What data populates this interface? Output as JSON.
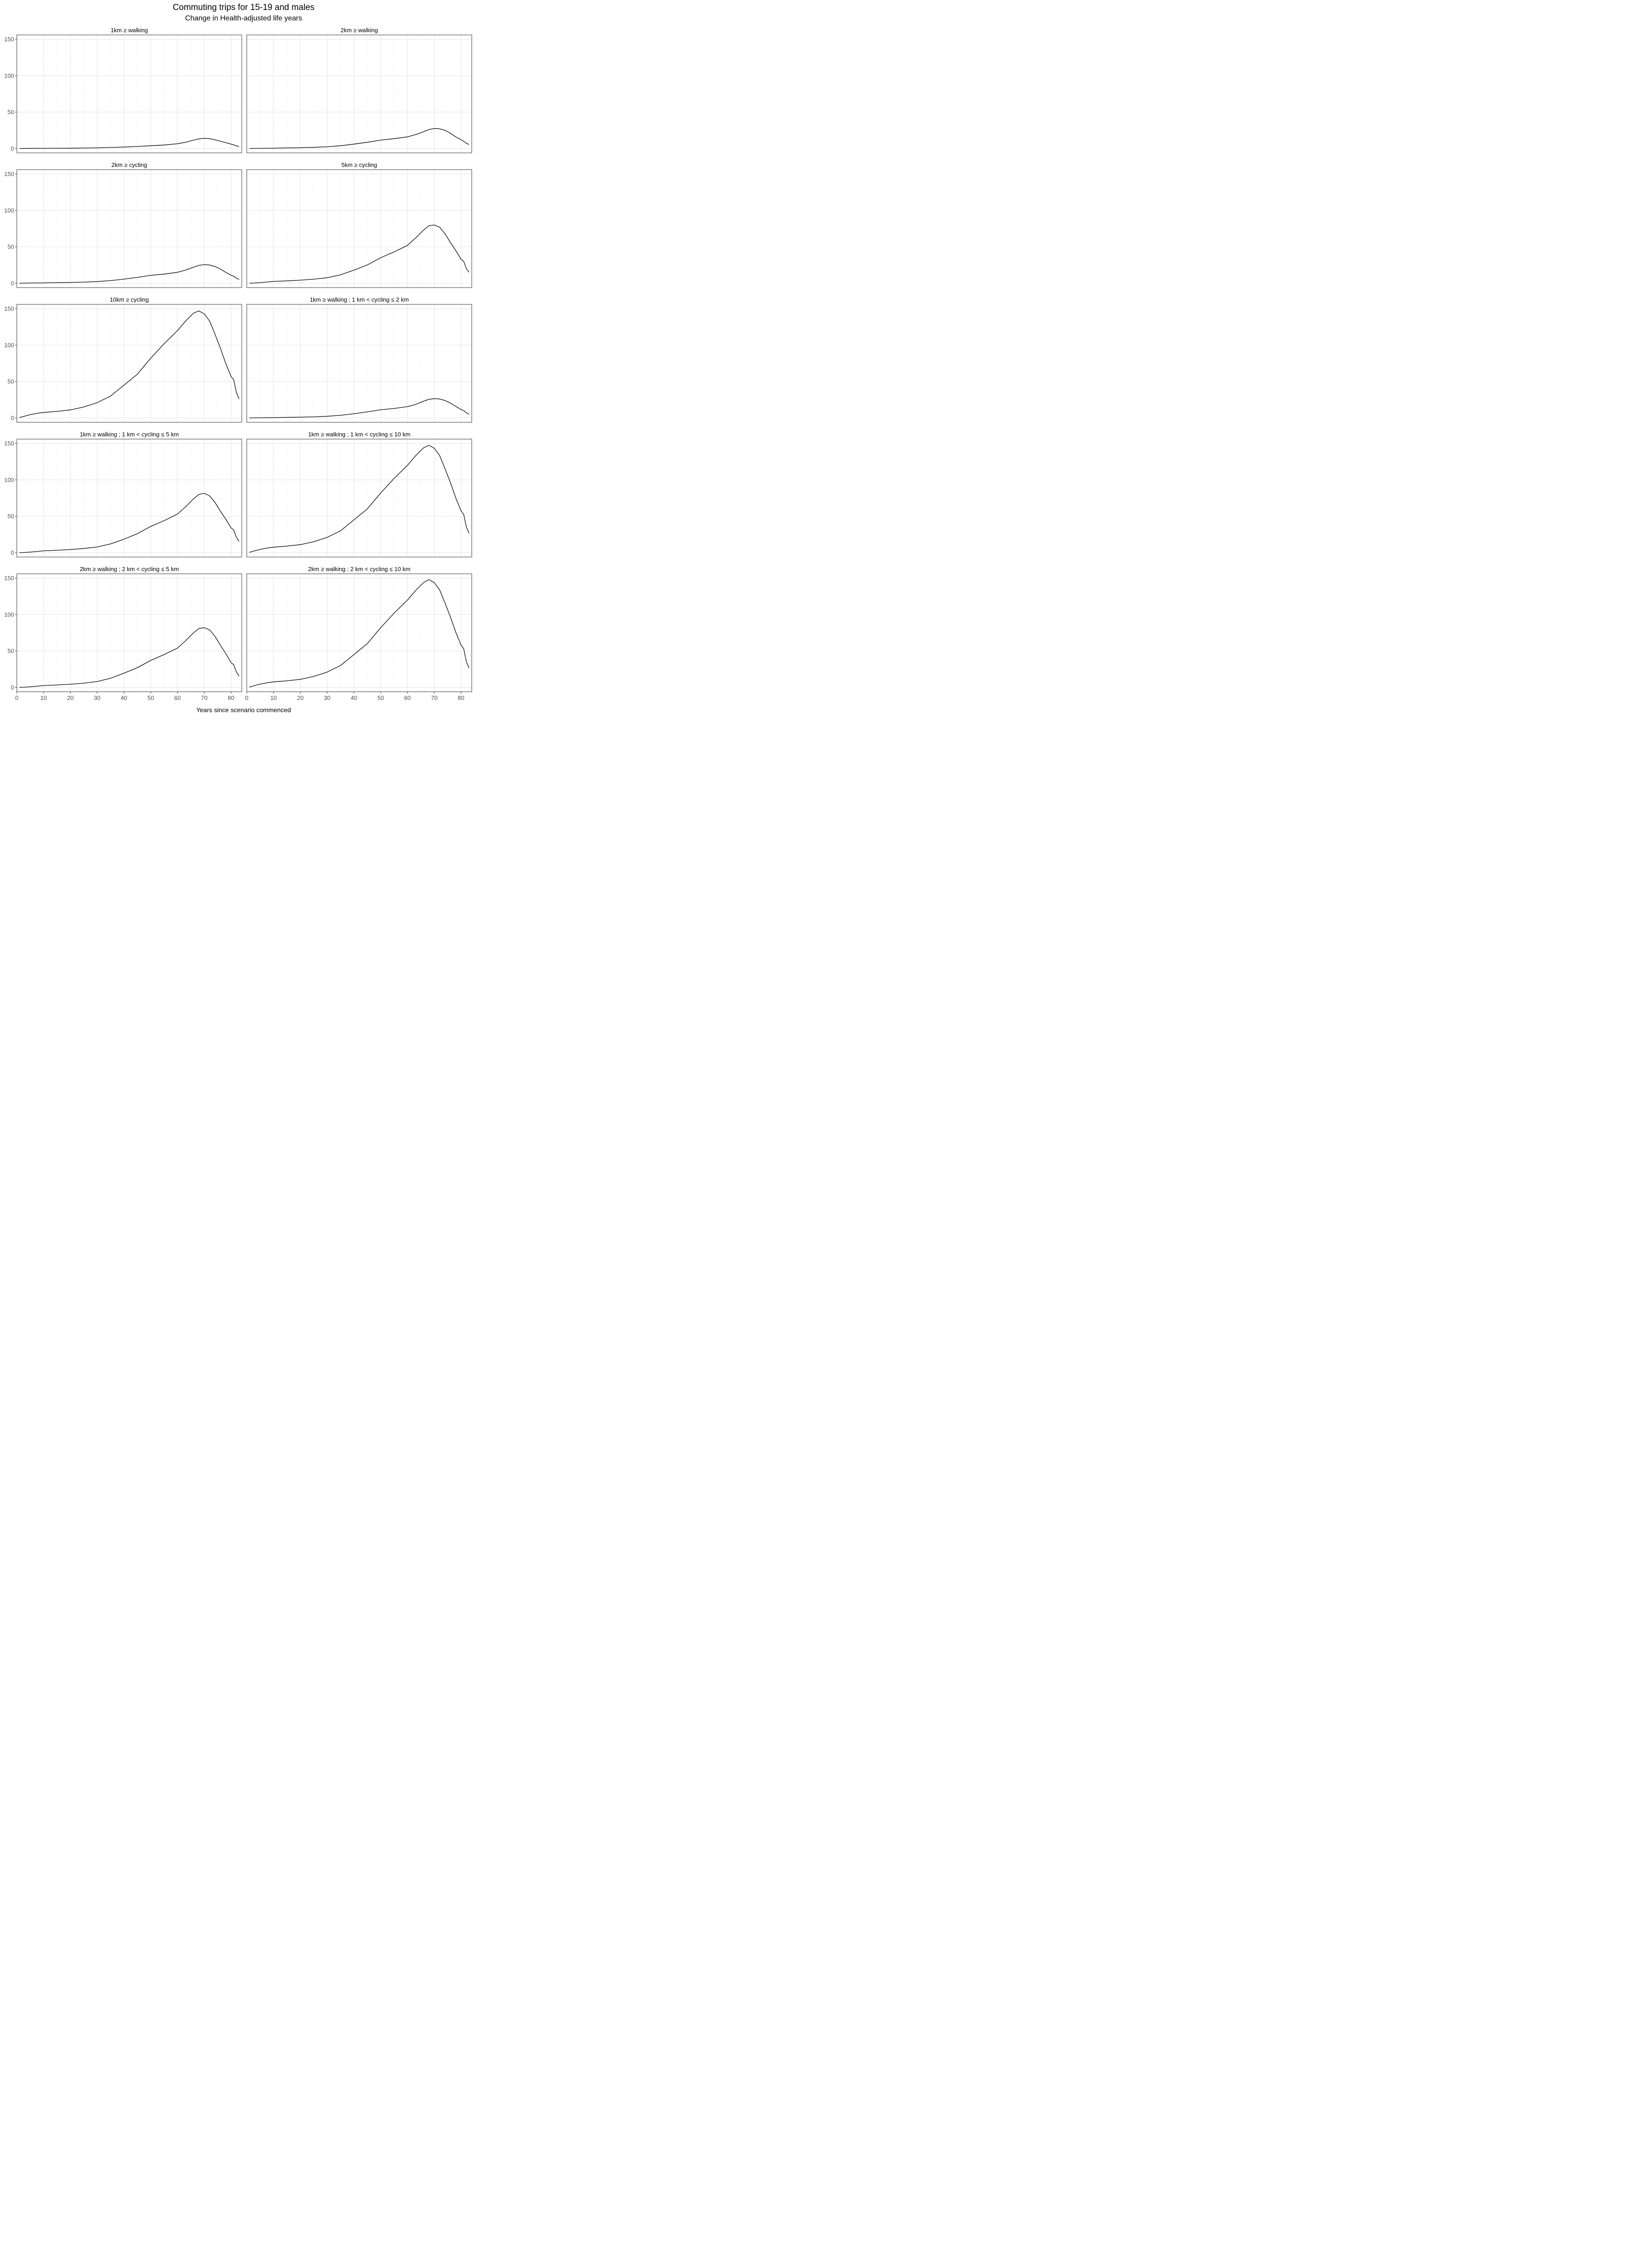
{
  "chart_data": {
    "type": "line",
    "title": "Commuting trips for 15-19 and males",
    "subtitle": "Change in Health-adjusted life years",
    "xlabel": "Years since scenario commenced",
    "ylabel": "",
    "xlim": [
      0,
      84
    ],
    "ylim": [
      -6,
      156
    ],
    "x_ticks": [
      0,
      10,
      20,
      30,
      40,
      50,
      60,
      70,
      80
    ],
    "y_ticks": [
      0,
      50,
      100,
      150
    ],
    "grid": true,
    "line_color": "#000000",
    "panels": [
      {
        "name": "1km ≥ walking",
        "x": [
          1,
          5,
          10,
          15,
          20,
          25,
          30,
          35,
          40,
          45,
          50,
          55,
          60,
          63,
          66,
          68,
          70,
          72,
          74,
          76,
          78,
          80,
          81,
          82,
          83
        ],
        "values": [
          0,
          0.1,
          0.2,
          0.3,
          0.4,
          0.6,
          0.9,
          1.4,
          2,
          2.8,
          3.8,
          4.8,
          6.5,
          8.5,
          11.5,
          13.2,
          14,
          13.5,
          12,
          10,
          8,
          6,
          5,
          3.5,
          3
        ]
      },
      {
        "name": "2km ≥ walking",
        "x": [
          1,
          5,
          10,
          15,
          20,
          25,
          30,
          35,
          40,
          45,
          50,
          55,
          60,
          63,
          66,
          68,
          70,
          72,
          74,
          76,
          78,
          80,
          81,
          82,
          83
        ],
        "values": [
          0,
          0.2,
          0.5,
          0.8,
          1.1,
          1.6,
          2.4,
          3.8,
          6,
          8.5,
          11.5,
          13.5,
          16,
          19,
          23,
          26,
          27.5,
          27,
          25,
          21,
          16,
          12,
          10,
          7,
          5.5
        ]
      },
      {
        "name": "2km ≥ cycling",
        "x": [
          1,
          5,
          10,
          15,
          20,
          25,
          30,
          35,
          40,
          45,
          50,
          55,
          60,
          63,
          66,
          68,
          70,
          72,
          74,
          76,
          78,
          80,
          81,
          82,
          83
        ],
        "values": [
          0,
          0.2,
          0.5,
          0.8,
          1.1,
          1.5,
          2.3,
          3.6,
          5.6,
          8,
          10.8,
          12.5,
          15,
          18,
          22,
          24.5,
          25.5,
          25,
          23,
          19.5,
          15,
          11,
          9.5,
          7,
          5
        ]
      },
      {
        "name": "5km ≥ cycling",
        "x": [
          1,
          3,
          5,
          8,
          10,
          15,
          20,
          25,
          30,
          35,
          40,
          45,
          50,
          55,
          60,
          63,
          66,
          68,
          70,
          72,
          74,
          76,
          78,
          80,
          81,
          82,
          83
        ],
        "values": [
          0,
          0.3,
          0.8,
          1.8,
          2.5,
          3.2,
          4.2,
          5.5,
          7.5,
          11.5,
          18,
          25,
          35,
          43,
          52,
          62,
          73,
          79,
          80,
          77,
          68,
          56,
          45,
          33,
          30,
          20,
          15
        ]
      },
      {
        "name": "10km ≥ cycling",
        "x": [
          1,
          3,
          5,
          8,
          10,
          15,
          20,
          25,
          30,
          35,
          40,
          45,
          50,
          55,
          60,
          63,
          66,
          68,
          70,
          72,
          74,
          76,
          78,
          80,
          81,
          82,
          83
        ],
        "values": [
          0.5,
          2.5,
          4.5,
          6.5,
          7.5,
          9,
          11,
          15,
          21,
          30,
          45,
          60,
          82,
          102,
          120,
          133,
          144,
          147,
          143,
          133,
          115,
          96,
          75,
          57,
          52,
          35,
          26
        ]
      },
      {
        "name": "1km ≥ walking ; 1 km < cycling ≤ 2 km",
        "x": [
          1,
          5,
          10,
          15,
          20,
          25,
          30,
          35,
          40,
          45,
          50,
          55,
          60,
          63,
          66,
          68,
          70,
          72,
          74,
          76,
          78,
          80,
          81,
          82,
          83
        ],
        "values": [
          0,
          0.2,
          0.5,
          0.8,
          1.1,
          1.5,
          2.3,
          3.6,
          5.8,
          8.3,
          11.2,
          13,
          15.5,
          18.5,
          23,
          25.5,
          26.5,
          26,
          24,
          20.5,
          16,
          11.5,
          10,
          7,
          5
        ]
      },
      {
        "name": "1km ≥ walking ; 1 km < cycling ≤ 5 km",
        "x": [
          1,
          3,
          5,
          8,
          10,
          15,
          20,
          25,
          30,
          35,
          40,
          45,
          50,
          55,
          60,
          63,
          66,
          68,
          70,
          72,
          74,
          76,
          78,
          80,
          81,
          82,
          83
        ],
        "values": [
          0,
          0.3,
          0.8,
          1.8,
          2.5,
          3.3,
          4.3,
          5.7,
          7.8,
          12,
          18.5,
          26,
          36,
          44,
          53,
          63,
          74,
          80,
          81.5,
          78,
          69,
          57,
          46,
          34,
          31,
          21,
          15.5
        ]
      },
      {
        "name": "1km ≥ walking ; 1 km < cycling ≤ 10 km",
        "x": [
          1,
          3,
          5,
          8,
          10,
          15,
          20,
          25,
          30,
          35,
          40,
          45,
          50,
          55,
          60,
          63,
          66,
          68,
          70,
          72,
          74,
          76,
          78,
          80,
          81,
          82,
          83
        ],
        "values": [
          0.5,
          2.5,
          4.5,
          6.5,
          7.5,
          9,
          11,
          15,
          21,
          30,
          45,
          60,
          82,
          102,
          120,
          133,
          144,
          147.5,
          143.5,
          133.5,
          115.5,
          96.5,
          75.5,
          57.5,
          52.5,
          35,
          26.5
        ]
      },
      {
        "name": "2km ≥ walking ; 2 km < cycling ≤ 5 km",
        "x": [
          1,
          3,
          5,
          8,
          10,
          15,
          20,
          25,
          30,
          35,
          40,
          45,
          50,
          55,
          60,
          63,
          66,
          68,
          70,
          72,
          74,
          76,
          78,
          80,
          81,
          82,
          83
        ],
        "values": [
          0,
          0.3,
          0.8,
          1.8,
          2.5,
          3.3,
          4.3,
          5.8,
          8,
          12.5,
          19.5,
          27,
          37,
          45,
          54,
          64,
          75,
          81,
          82,
          79,
          70,
          58,
          46.5,
          34,
          31,
          21,
          15.5
        ]
      },
      {
        "name": "2km ≥ walking ; 2 km < cycling ≤ 10 km",
        "x": [
          1,
          3,
          5,
          8,
          10,
          15,
          20,
          25,
          30,
          35,
          40,
          45,
          50,
          55,
          60,
          63,
          66,
          68,
          70,
          72,
          74,
          76,
          78,
          80,
          81,
          82,
          83
        ],
        "values": [
          0.5,
          2.5,
          4.5,
          6.5,
          7.5,
          9,
          11,
          15,
          21,
          30,
          45,
          60,
          82,
          102,
          120,
          133,
          144,
          148,
          144,
          134,
          116,
          97,
          76,
          58,
          53,
          35,
          26.5
        ]
      }
    ]
  }
}
